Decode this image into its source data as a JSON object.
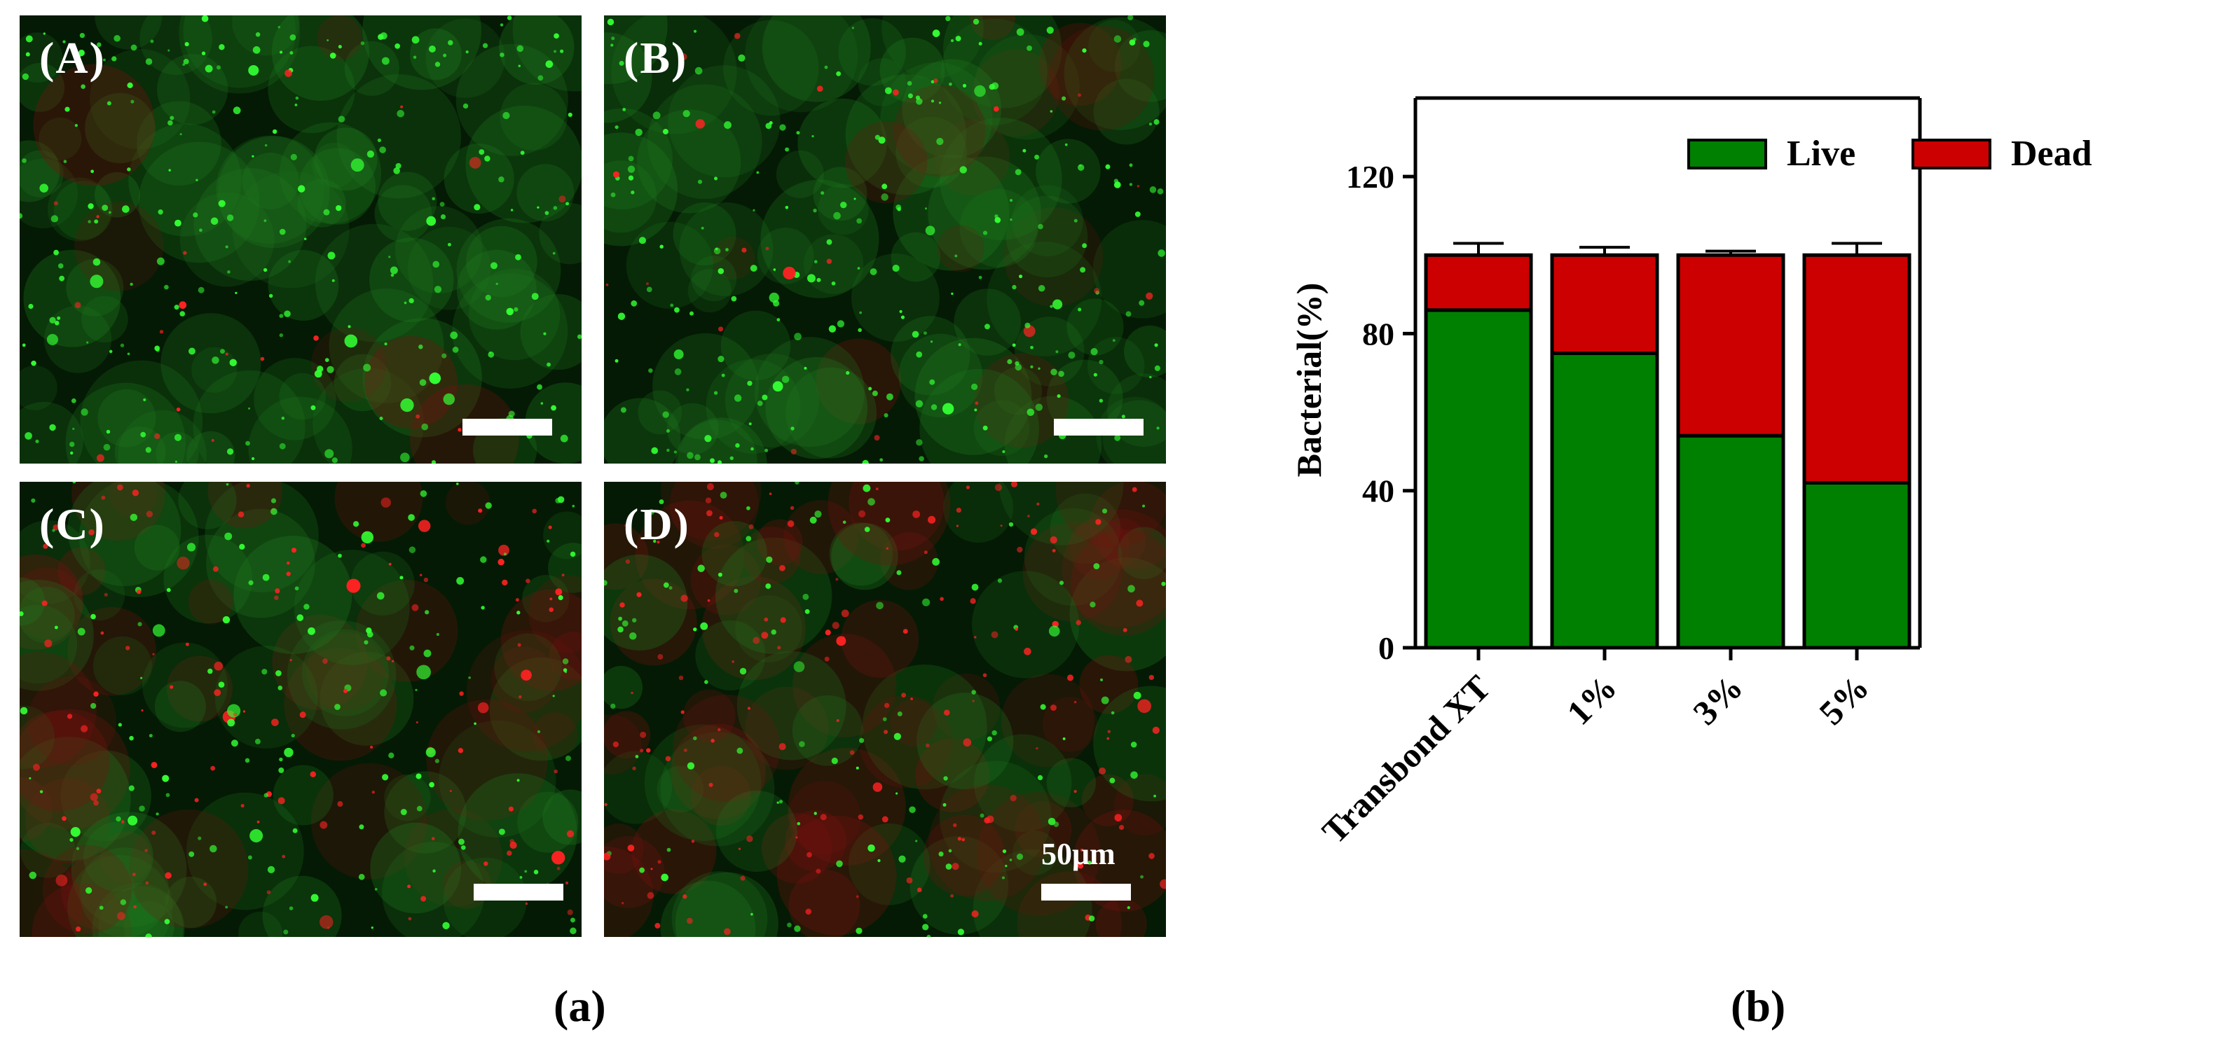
{
  "panels": [
    {
      "label": "(A)",
      "live_fraction": 0.93
    },
    {
      "label": "(B)",
      "live_fraction": 0.9
    },
    {
      "label": "(C)",
      "live_fraction": 0.55
    },
    {
      "label": "(D)",
      "live_fraction": 0.45
    }
  ],
  "scale_label": "50μm",
  "sub_labels": {
    "a": "(a)",
    "b": "(b)"
  },
  "colors": {
    "live": "#008000",
    "dead": "#cc0000",
    "axis": "#000000"
  },
  "chart_data": {
    "type": "bar",
    "stacked": true,
    "categories": [
      "Transbond XT",
      "1%",
      "3%",
      "5%"
    ],
    "series": [
      {
        "name": "Live",
        "values": [
          86,
          75,
          54,
          42
        ],
        "errors": [
          3.5,
          2.5,
          1.5,
          4
        ],
        "color": "#008000"
      },
      {
        "name": "Dead",
        "values": [
          14,
          25,
          46,
          58
        ],
        "errors": [
          3,
          2,
          1,
          3
        ],
        "color": "#cc0000"
      }
    ],
    "ylabel": "Bacterial(%)",
    "xlabel": "",
    "ylim": [
      0,
      140
    ],
    "yticks": [
      0,
      40,
      80,
      120
    ],
    "legend": "top-right",
    "grid": false
  }
}
